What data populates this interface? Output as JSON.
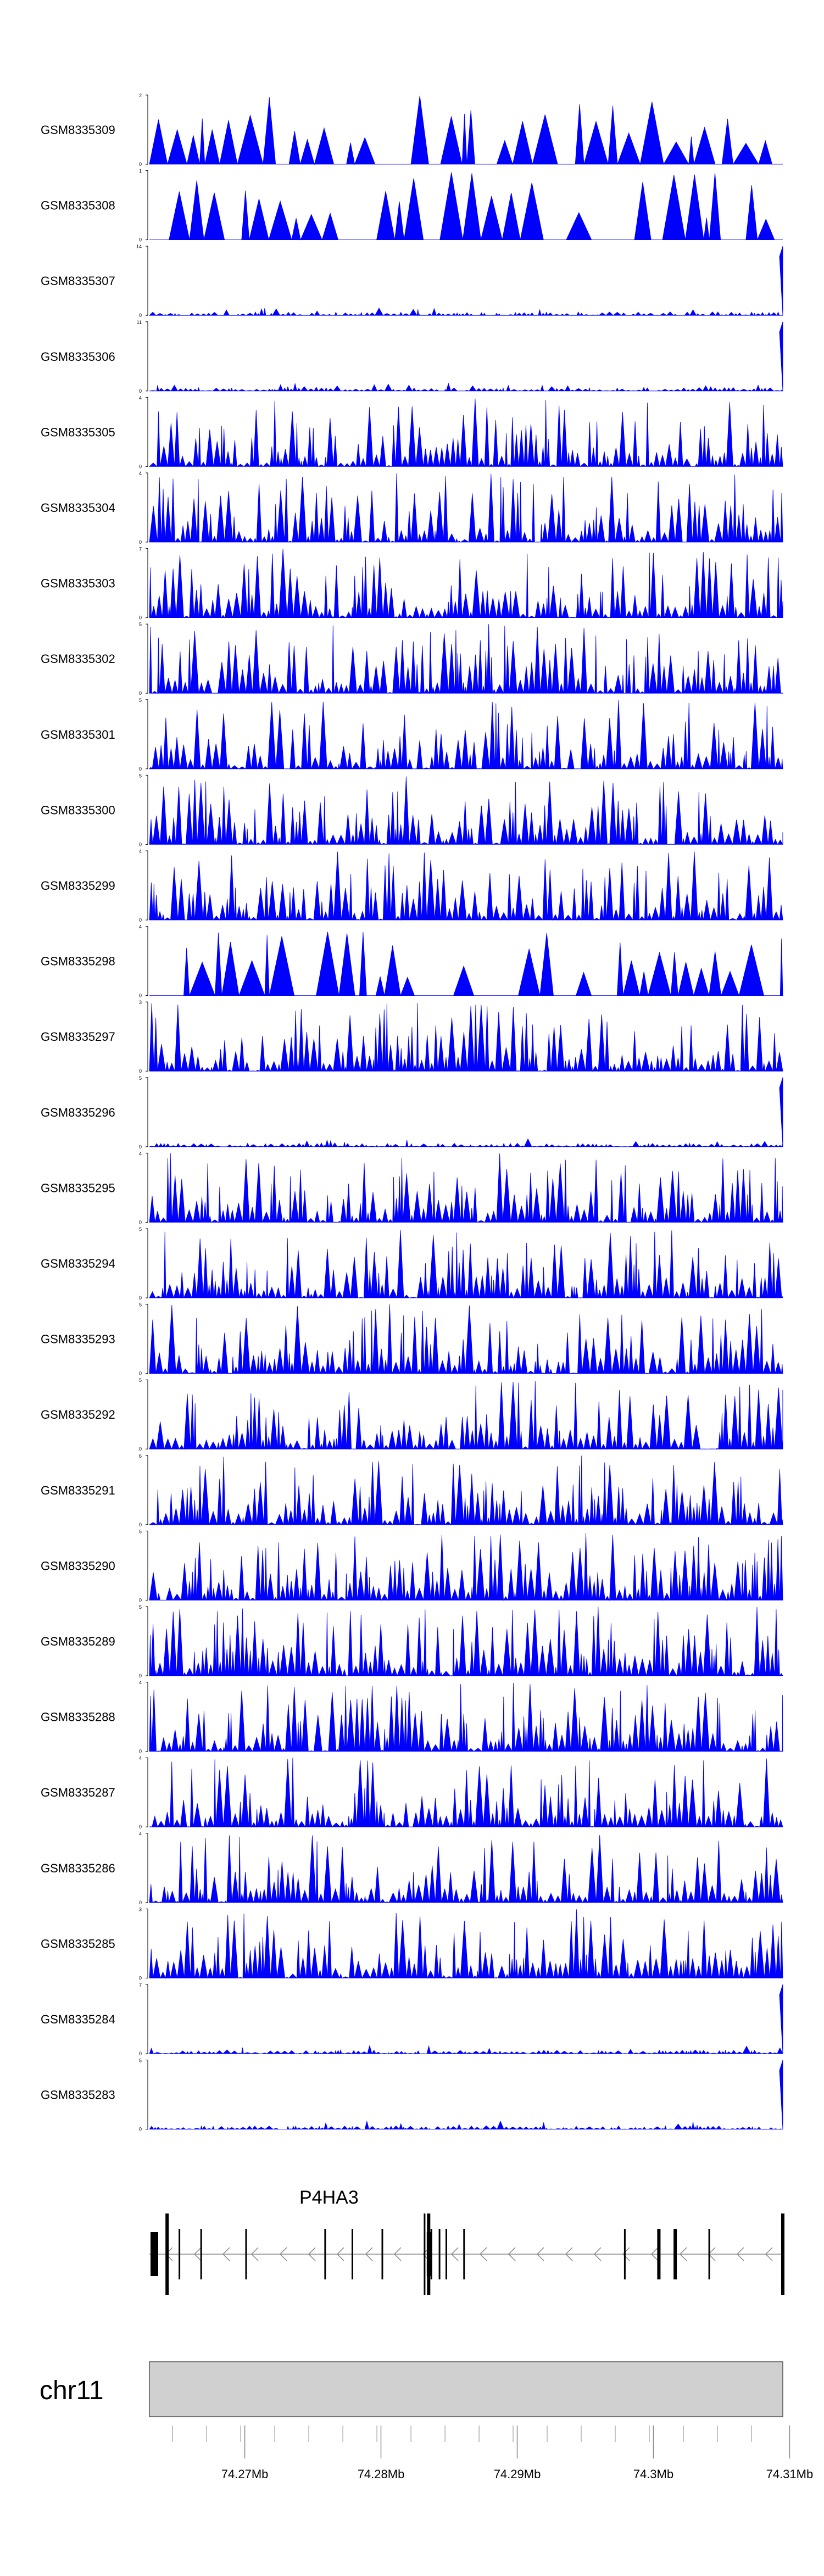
{
  "chart_data": {
    "type": "area",
    "chromosome": "chr11",
    "gene": {
      "name": "P4HA3",
      "strand": "-",
      "exons_x": [
        74.2643,
        74.2652,
        74.2668,
        74.2701,
        74.2759,
        74.2779,
        74.2801,
        74.2832,
        74.2835,
        74.2837,
        74.2843,
        74.2848,
        74.2861,
        74.2979,
        74.3004,
        74.3016,
        74.3041,
        74.3095
      ]
    },
    "xlim": [
      74.263,
      74.3095
    ],
    "x_ticks": [
      {
        "value": 74.27,
        "label": "74.27Mb"
      },
      {
        "value": 74.28,
        "label": "74.28Mb"
      },
      {
        "value": 74.29,
        "label": "74.29Mb"
      },
      {
        "value": 74.3,
        "label": "74.3Mb"
      },
      {
        "value": 74.31,
        "label": "74.31Mb"
      }
    ],
    "fill_color": "#0000ff",
    "tracks": [
      {
        "name": "GSM8335309",
        "ymax": 2
      },
      {
        "name": "GSM8335308",
        "ymax": 1
      },
      {
        "name": "GSM8335307",
        "ymax": 14
      },
      {
        "name": "GSM8335306",
        "ymax": 11
      },
      {
        "name": "GSM8335305",
        "ymax": 4
      },
      {
        "name": "GSM8335304",
        "ymax": 4
      },
      {
        "name": "GSM8335303",
        "ymax": 7
      },
      {
        "name": "GSM8335302",
        "ymax": 5
      },
      {
        "name": "GSM8335301",
        "ymax": 5
      },
      {
        "name": "GSM8335300",
        "ymax": 5
      },
      {
        "name": "GSM8335299",
        "ymax": 4
      },
      {
        "name": "GSM8335298",
        "ymax": 4
      },
      {
        "name": "GSM8335297",
        "ymax": 3
      },
      {
        "name": "GSM8335296",
        "ymax": 5
      },
      {
        "name": "GSM8335295",
        "ymax": 4
      },
      {
        "name": "GSM8335294",
        "ymax": 5
      },
      {
        "name": "GSM8335293",
        "ymax": 5
      },
      {
        "name": "GSM8335292",
        "ymax": 5
      },
      {
        "name": "GSM8335291",
        "ymax": 6
      },
      {
        "name": "GSM8335290",
        "ymax": 5
      },
      {
        "name": "GSM8335289",
        "ymax": 5
      },
      {
        "name": "GSM8335288",
        "ymax": 4
      },
      {
        "name": "GSM8335287",
        "ymax": 4
      },
      {
        "name": "GSM8335286",
        "ymax": 4
      },
      {
        "name": "GSM8335285",
        "ymax": 3
      },
      {
        "name": "GSM8335284",
        "ymax": 7
      },
      {
        "name": "GSM8335283",
        "ymax": 5
      }
    ]
  }
}
